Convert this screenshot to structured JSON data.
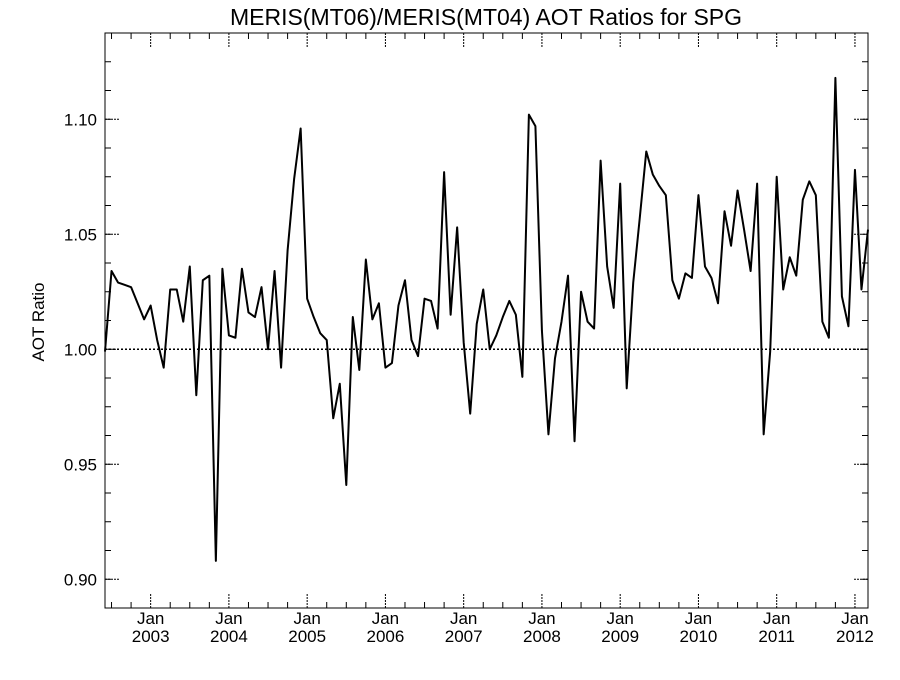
{
  "chart_data": {
    "type": "line",
    "title": "MERIS(MT06)/MERIS(MT04)  AOT Ratios for SPG",
    "ylabel": "AOT Ratio",
    "xlabel": "",
    "ylim": [
      0.8875,
      1.1375
    ],
    "xlim": [
      "2002-06",
      "2012-03"
    ],
    "yticks": [
      {
        "value": 0.9,
        "label": "0.90"
      },
      {
        "value": 0.95,
        "label": "0.95"
      },
      {
        "value": 1.0,
        "label": "1.00"
      },
      {
        "value": 1.05,
        "label": "1.05"
      },
      {
        "value": 1.1,
        "label": "1.10"
      }
    ],
    "xticks": [
      {
        "date": "2003-01",
        "month": "Jan",
        "year": "2003"
      },
      {
        "date": "2004-01",
        "month": "Jan",
        "year": "2004"
      },
      {
        "date": "2005-01",
        "month": "Jan",
        "year": "2005"
      },
      {
        "date": "2006-01",
        "month": "Jan",
        "year": "2006"
      },
      {
        "date": "2007-01",
        "month": "Jan",
        "year": "2007"
      },
      {
        "date": "2008-01",
        "month": "Jan",
        "year": "2008"
      },
      {
        "date": "2009-01",
        "month": "Jan",
        "year": "2009"
      },
      {
        "date": "2010-01",
        "month": "Jan",
        "year": "2010"
      },
      {
        "date": "2011-01",
        "month": "Jan",
        "year": "2011"
      },
      {
        "date": "2012-01",
        "month": "Jan",
        "year": "2012"
      }
    ],
    "reference_line": {
      "value": 1.0,
      "style": "dotted"
    },
    "grid": false,
    "series": [
      {
        "x": [
          "2002-06",
          "2002-07",
          "2002-08",
          "2002-09",
          "2002-10",
          "2002-11",
          "2002-12",
          "2003-01",
          "2003-02",
          "2003-03",
          "2003-04",
          "2003-05",
          "2003-06",
          "2003-07",
          "2003-08",
          "2003-09",
          "2003-10",
          "2003-11",
          "2003-12",
          "2004-01",
          "2004-02",
          "2004-03",
          "2004-04",
          "2004-05",
          "2004-06",
          "2004-07",
          "2004-08",
          "2004-09",
          "2004-10",
          "2004-11",
          "2004-12",
          "2005-01",
          "2005-02",
          "2005-03",
          "2005-04",
          "2005-05",
          "2005-06",
          "2005-07",
          "2005-08",
          "2005-09",
          "2005-10",
          "2005-11",
          "2005-12",
          "2006-01",
          "2006-02",
          "2006-03",
          "2006-04",
          "2006-05",
          "2006-06",
          "2006-07",
          "2006-08",
          "2006-09",
          "2006-10",
          "2006-11",
          "2006-12",
          "2007-01",
          "2007-02",
          "2007-03",
          "2007-04",
          "2007-05",
          "2007-06",
          "2007-07",
          "2007-08",
          "2007-09",
          "2007-10",
          "2007-11",
          "2007-12",
          "2008-01",
          "2008-02",
          "2008-03",
          "2008-04",
          "2008-05",
          "2008-06",
          "2008-07",
          "2008-08",
          "2008-09",
          "2008-10",
          "2008-11",
          "2008-12",
          "2009-01",
          "2009-02",
          "2009-03",
          "2009-04",
          "2009-05",
          "2009-06",
          "2009-07",
          "2009-08",
          "2009-09",
          "2009-10",
          "2009-11",
          "2009-12",
          "2010-01",
          "2010-02",
          "2010-03",
          "2010-04",
          "2010-05",
          "2010-06",
          "2010-07",
          "2010-08",
          "2010-09",
          "2010-10",
          "2010-11",
          "2010-12",
          "2011-01",
          "2011-02",
          "2011-03",
          "2011-04",
          "2011-05",
          "2011-06",
          "2011-07",
          "2011-08",
          "2011-09",
          "2011-10",
          "2011-11",
          "2011-12",
          "2012-01",
          "2012-02",
          "2012-03"
        ],
        "values": [
          0.999,
          1.034,
          1.029,
          1.028,
          1.027,
          1.02,
          1.013,
          1.019,
          1.004,
          0.992,
          1.026,
          1.026,
          1.012,
          1.036,
          0.98,
          1.03,
          1.032,
          0.908,
          1.035,
          1.006,
          1.005,
          1.035,
          1.016,
          1.014,
          1.027,
          1.0,
          1.034,
          0.992,
          1.043,
          1.074,
          1.096,
          1.022,
          1.014,
          1.007,
          1.004,
          0.97,
          0.985,
          0.941,
          1.014,
          0.991,
          1.039,
          1.013,
          1.02,
          0.992,
          0.994,
          1.019,
          1.03,
          1.004,
          0.997,
          1.022,
          1.021,
          1.009,
          1.077,
          1.015,
          1.053,
          1.003,
          0.972,
          1.011,
          1.026,
          1.0,
          1.006,
          1.014,
          1.021,
          1.015,
          0.988,
          1.102,
          1.097,
          1.008,
          0.963,
          0.996,
          1.012,
          1.032,
          0.96,
          1.025,
          1.012,
          1.009,
          1.082,
          1.036,
          1.018,
          1.072,
          0.983,
          1.029,
          1.057,
          1.086,
          1.076,
          1.071,
          1.067,
          1.03,
          1.022,
          1.033,
          1.031,
          1.067,
          1.036,
          1.031,
          1.02,
          1.06,
          1.045,
          1.069,
          1.052,
          1.034,
          1.072,
          0.963,
          0.999,
          1.075,
          1.026,
          1.04,
          1.032,
          1.065,
          1.073,
          1.067,
          1.012,
          1.005,
          1.118,
          1.023,
          1.01,
          1.078,
          1.026,
          1.052
        ]
      }
    ]
  }
}
